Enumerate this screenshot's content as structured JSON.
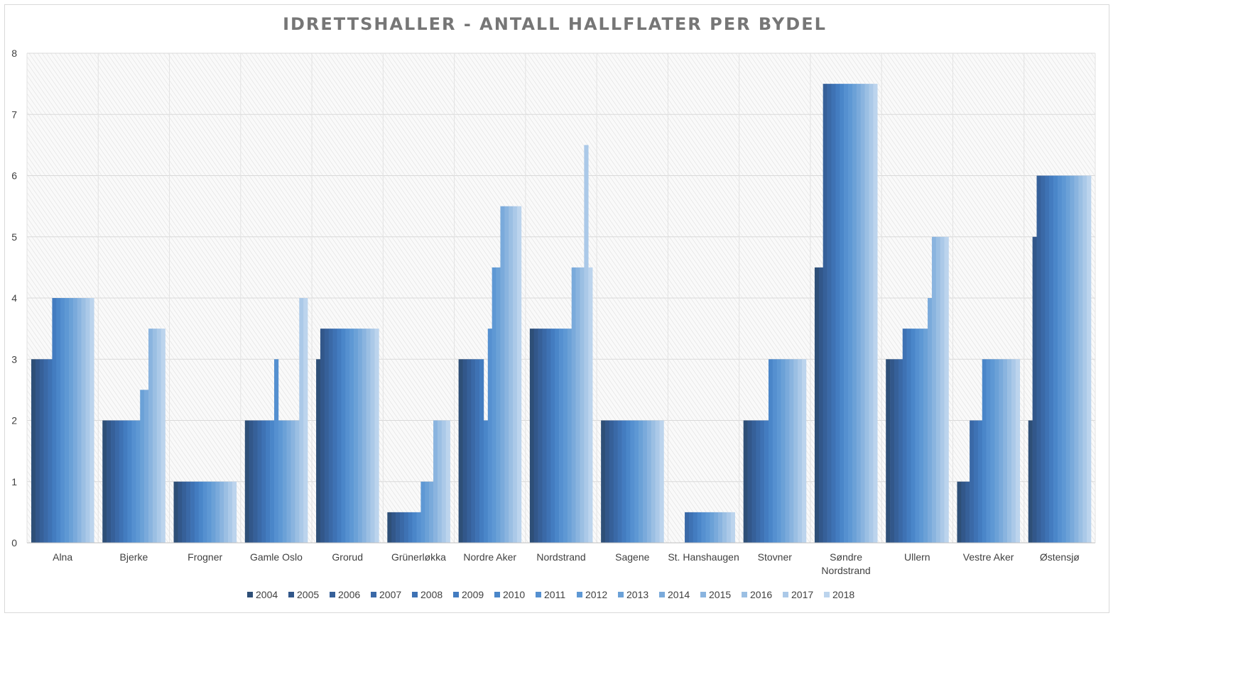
{
  "chart_data": {
    "type": "bar",
    "title": "IDRETTSHALLER - ANTALL HALLFLATER PER BYDEL",
    "xlabel": "",
    "ylabel": "",
    "ylim": [
      0,
      8
    ],
    "yticks": [
      "0",
      "1",
      "2",
      "3",
      "4",
      "5",
      "6",
      "7",
      "8"
    ],
    "grid": true,
    "legend_position": "bottom",
    "categories": [
      "Alna",
      "Bjerke",
      "Frogner",
      "Gamle Oslo",
      "Grorud",
      "Grünerløkka",
      "Nordre Aker",
      "Nordstrand",
      "Sagene",
      "St. Hanshaugen",
      "Stovner",
      "Søndre Nordstrand",
      "Ullern",
      "Vestre Aker",
      "Østensjø"
    ],
    "series": [
      {
        "name": "2004",
        "color": "#2e4f77",
        "values": [
          3,
          2,
          1,
          2,
          3,
          0.5,
          3,
          3.5,
          2,
          0,
          2,
          4.5,
          3,
          1,
          2
        ]
      },
      {
        "name": "2005",
        "color": "#32578a",
        "values": [
          3,
          2,
          1,
          2,
          3.5,
          0.5,
          3,
          3.5,
          2,
          0,
          2,
          4.5,
          3,
          1,
          5
        ]
      },
      {
        "name": "2006",
        "color": "#366099",
        "values": [
          3,
          2,
          1,
          2,
          3.5,
          0.5,
          3,
          3.5,
          2,
          0,
          2,
          7.5,
          3,
          1,
          6
        ]
      },
      {
        "name": "2007",
        "color": "#3a69a7",
        "values": [
          3,
          2,
          1,
          2,
          3.5,
          0.5,
          3,
          3.5,
          2,
          0.5,
          2,
          7.5,
          3,
          2,
          6
        ]
      },
      {
        "name": "2008",
        "color": "#3e72b4",
        "values": [
          3,
          2,
          1,
          2,
          3.5,
          0.5,
          3,
          3.5,
          2,
          0.5,
          2,
          7.5,
          3.5,
          2,
          6
        ]
      },
      {
        "name": "2009",
        "color": "#437cc0",
        "values": [
          4,
          2,
          1,
          2,
          3.5,
          0.5,
          3,
          3.5,
          2,
          0.5,
          2,
          7.5,
          3.5,
          2,
          6
        ]
      },
      {
        "name": "2010",
        "color": "#4a86c9",
        "values": [
          4,
          2,
          1,
          2,
          3.5,
          0.5,
          2,
          3.5,
          2,
          0.5,
          3,
          7.5,
          3.5,
          3,
          6
        ]
      },
      {
        "name": "2011",
        "color": "#5590d0",
        "values": [
          4,
          2,
          1,
          3,
          3.5,
          0.5,
          3.5,
          3.5,
          2,
          0.5,
          3,
          7.5,
          3.5,
          3,
          6
        ]
      },
      {
        "name": "2012",
        "color": "#5e98d4",
        "values": [
          4,
          2,
          1,
          2,
          3.5,
          1,
          4.5,
          3.5,
          2,
          0.5,
          3,
          7.5,
          3.5,
          3,
          6
        ]
      },
      {
        "name": "2013",
        "color": "#6ba1d7",
        "values": [
          4,
          2.5,
          1,
          2,
          3.5,
          1,
          4.5,
          3.5,
          2,
          0.5,
          3,
          7.5,
          3.5,
          3,
          6
        ]
      },
      {
        "name": "2014",
        "color": "#7aaadb",
        "values": [
          4,
          2.5,
          1,
          2,
          3.5,
          1,
          5.5,
          4.5,
          2,
          0.5,
          3,
          7.5,
          4,
          3,
          6
        ]
      },
      {
        "name": "2015",
        "color": "#8ab4df",
        "values": [
          4,
          3.5,
          1,
          2,
          3.5,
          2,
          5.5,
          4.5,
          2,
          0.5,
          3,
          7.5,
          5,
          3,
          6
        ]
      },
      {
        "name": "2016",
        "color": "#9bbfe3",
        "values": [
          4,
          3.5,
          1,
          2,
          3.5,
          2,
          5.5,
          4.5,
          2,
          0.5,
          3,
          7.5,
          5,
          3,
          6
        ]
      },
      {
        "name": "2017",
        "color": "#abc9e8",
        "values": [
          4,
          3.5,
          1,
          4,
          3.5,
          2,
          5.5,
          6.5,
          2,
          0.5,
          3,
          7.5,
          5,
          3,
          6
        ]
      },
      {
        "name": "2018",
        "color": "#bcd4ed",
        "values": [
          4,
          3.5,
          1,
          4,
          3.5,
          2,
          5.5,
          4.5,
          2,
          0.5,
          3,
          7.5,
          5,
          3,
          6
        ]
      }
    ]
  }
}
